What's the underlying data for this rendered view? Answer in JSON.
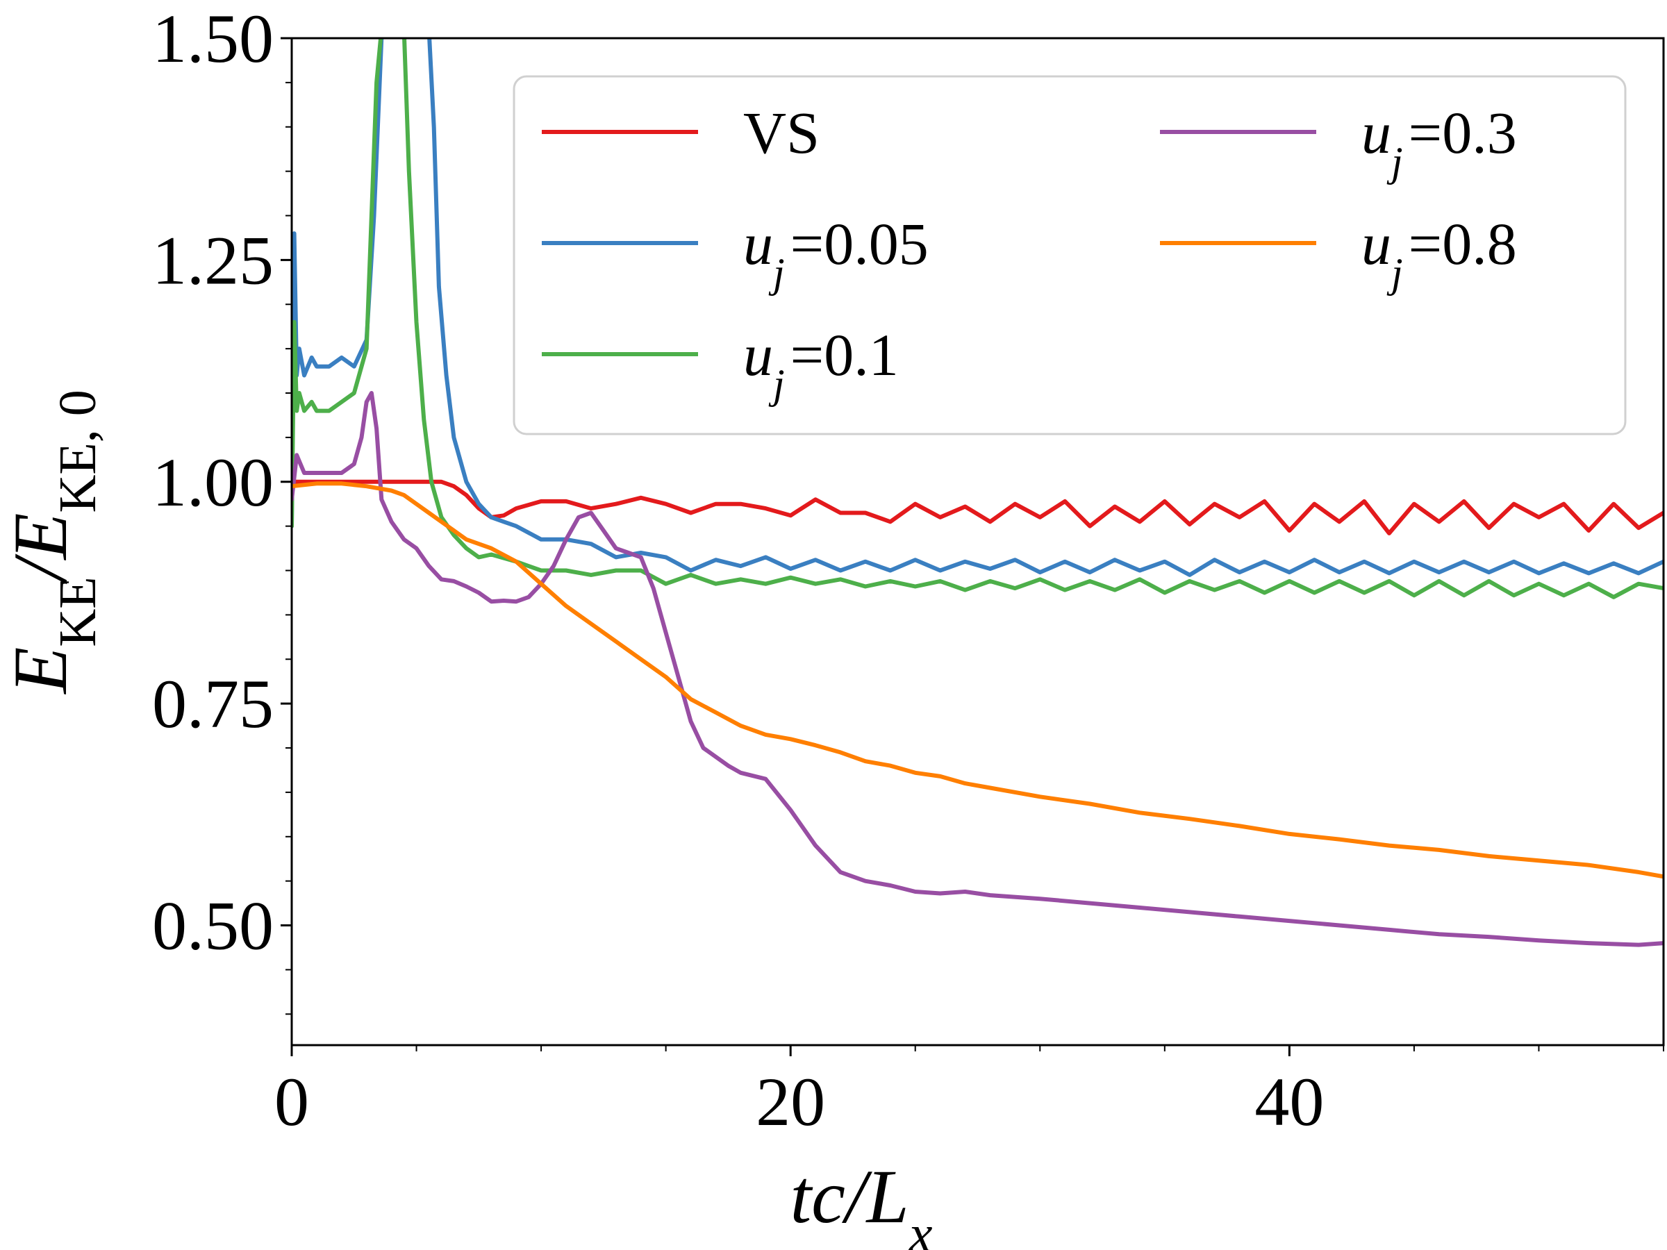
{
  "chart_data": {
    "type": "line",
    "xlabel": {
      "base": "tc/L",
      "sub": "x"
    },
    "ylabel": {
      "base1": "E",
      "sub1": "KE",
      "slash": "/",
      "base2": "E",
      "sub2": "KE, 0"
    },
    "xlim": [
      0,
      55
    ],
    "ylim": [
      0.365,
      1.5
    ],
    "xticks": [
      0,
      20,
      40
    ],
    "xtick_labels": [
      "0",
      "20",
      "40"
    ],
    "yticks": [
      0.5,
      0.75,
      1.0,
      1.25,
      1.5
    ],
    "ytick_labels": [
      "0.50",
      "0.75",
      "1.00",
      "1.25",
      "1.50"
    ],
    "grid": false,
    "legend_position": "top-right",
    "legend_columns": 2,
    "series": [
      {
        "name": "VS",
        "color": "#e31a1c",
        "x": [
          0,
          1,
          2,
          3,
          4,
          5,
          6,
          6.5,
          7,
          7.5,
          8,
          8.5,
          9,
          10,
          11,
          12,
          13,
          14,
          15,
          16,
          17,
          18,
          19,
          20,
          21,
          22,
          23,
          24,
          25,
          26,
          27,
          28,
          29,
          30,
          31,
          32,
          33,
          34,
          35,
          36,
          37,
          38,
          39,
          40,
          41,
          42,
          43,
          44,
          45,
          46,
          47,
          48,
          49,
          50,
          51,
          52,
          53,
          54,
          55
        ],
        "y": [
          1.0,
          1.0,
          1.0,
          1.0,
          1.0,
          1.0,
          1.0,
          0.995,
          0.985,
          0.97,
          0.96,
          0.962,
          0.97,
          0.978,
          0.978,
          0.97,
          0.975,
          0.982,
          0.975,
          0.965,
          0.975,
          0.975,
          0.97,
          0.962,
          0.98,
          0.965,
          0.965,
          0.955,
          0.975,
          0.96,
          0.972,
          0.955,
          0.975,
          0.96,
          0.978,
          0.95,
          0.972,
          0.955,
          0.978,
          0.952,
          0.975,
          0.96,
          0.978,
          0.945,
          0.975,
          0.955,
          0.978,
          0.942,
          0.975,
          0.955,
          0.978,
          0.948,
          0.975,
          0.96,
          0.975,
          0.945,
          0.975,
          0.948,
          0.965
        ]
      },
      {
        "name": "u_j = 0.05",
        "color": "#3a7fc1",
        "x": [
          0,
          0.1,
          0.2,
          0.3,
          0.5,
          0.8,
          1.0,
          1.5,
          2.0,
          2.5,
          3.0,
          3.3,
          3.6,
          3.8,
          4.0,
          5.5,
          5.7,
          5.9,
          6.2,
          6.5,
          7.0,
          7.5,
          8.0,
          8.5,
          9.0,
          10,
          11,
          12,
          13,
          14,
          15,
          16,
          17,
          18,
          19,
          20,
          21,
          22,
          23,
          24,
          25,
          26,
          27,
          28,
          29,
          30,
          31,
          32,
          33,
          34,
          35,
          36,
          37,
          38,
          39,
          40,
          41,
          42,
          43,
          44,
          45,
          46,
          47,
          48,
          49,
          50,
          51,
          52,
          53,
          54,
          55
        ],
        "y": [
          0.95,
          1.28,
          1.12,
          1.15,
          1.12,
          1.14,
          1.13,
          1.13,
          1.14,
          1.13,
          1.16,
          1.3,
          1.5,
          1.51,
          1.51,
          1.51,
          1.4,
          1.22,
          1.12,
          1.05,
          1.0,
          0.975,
          0.96,
          0.955,
          0.95,
          0.935,
          0.935,
          0.93,
          0.915,
          0.92,
          0.915,
          0.9,
          0.912,
          0.905,
          0.915,
          0.902,
          0.912,
          0.9,
          0.91,
          0.9,
          0.912,
          0.9,
          0.91,
          0.902,
          0.912,
          0.898,
          0.91,
          0.898,
          0.912,
          0.9,
          0.91,
          0.895,
          0.912,
          0.898,
          0.91,
          0.898,
          0.912,
          0.898,
          0.91,
          0.897,
          0.91,
          0.898,
          0.91,
          0.898,
          0.91,
          0.897,
          0.908,
          0.897,
          0.908,
          0.897,
          0.91
        ]
      },
      {
        "name": "u_j = 0.1",
        "color": "#4daf4a",
        "x": [
          0,
          0.1,
          0.2,
          0.3,
          0.5,
          0.8,
          1.0,
          1.5,
          2.0,
          2.5,
          3.0,
          3.2,
          3.4,
          3.6,
          4.5,
          4.7,
          5.0,
          5.3,
          5.6,
          6.0,
          6.5,
          7.0,
          7.5,
          8.0,
          9.0,
          10,
          11,
          12,
          13,
          14,
          15,
          16,
          17,
          18,
          19,
          20,
          21,
          22,
          23,
          24,
          25,
          26,
          27,
          28,
          29,
          30,
          31,
          32,
          33,
          34,
          35,
          36,
          37,
          38,
          39,
          40,
          41,
          42,
          43,
          44,
          45,
          46,
          47,
          48,
          49,
          50,
          51,
          52,
          53,
          54,
          55
        ],
        "y": [
          0.95,
          1.18,
          1.08,
          1.1,
          1.08,
          1.09,
          1.08,
          1.08,
          1.09,
          1.1,
          1.15,
          1.3,
          1.45,
          1.51,
          1.51,
          1.35,
          1.18,
          1.07,
          1.0,
          0.96,
          0.94,
          0.925,
          0.915,
          0.918,
          0.91,
          0.9,
          0.9,
          0.895,
          0.9,
          0.9,
          0.885,
          0.895,
          0.885,
          0.89,
          0.885,
          0.892,
          0.885,
          0.89,
          0.882,
          0.888,
          0.882,
          0.888,
          0.878,
          0.888,
          0.88,
          0.89,
          0.878,
          0.888,
          0.878,
          0.89,
          0.875,
          0.888,
          0.878,
          0.888,
          0.875,
          0.888,
          0.875,
          0.888,
          0.875,
          0.888,
          0.872,
          0.888,
          0.872,
          0.888,
          0.872,
          0.885,
          0.872,
          0.885,
          0.87,
          0.885,
          0.88
        ]
      },
      {
        "name": "u_j = 0.3",
        "color": "#984ea3",
        "x": [
          0,
          0.2,
          0.5,
          1.0,
          1.5,
          2.0,
          2.5,
          2.8,
          3.0,
          3.2,
          3.4,
          3.6,
          4.0,
          4.5,
          5.0,
          5.5,
          6.0,
          6.5,
          7.0,
          7.5,
          8.0,
          8.5,
          9.0,
          9.5,
          10.0,
          10.5,
          11.0,
          11.5,
          12.0,
          12.5,
          13.0,
          13.5,
          14.0,
          14.5,
          15.0,
          15.5,
          16.0,
          16.5,
          17.0,
          17.5,
          18.0,
          19.0,
          20.0,
          21.0,
          22.0,
          23.0,
          24.0,
          25.0,
          26.0,
          27.0,
          28.0,
          30.0,
          32.0,
          34.0,
          36.0,
          38.0,
          40.0,
          42.0,
          44.0,
          46.0,
          48.0,
          50.0,
          52.0,
          54.0,
          55.0
        ],
        "y": [
          0.98,
          1.03,
          1.01,
          1.01,
          1.01,
          1.01,
          1.02,
          1.05,
          1.09,
          1.1,
          1.06,
          0.98,
          0.955,
          0.935,
          0.925,
          0.905,
          0.89,
          0.888,
          0.882,
          0.875,
          0.865,
          0.866,
          0.865,
          0.87,
          0.885,
          0.905,
          0.935,
          0.96,
          0.965,
          0.945,
          0.925,
          0.92,
          0.915,
          0.88,
          0.83,
          0.78,
          0.73,
          0.7,
          0.69,
          0.68,
          0.672,
          0.665,
          0.63,
          0.59,
          0.56,
          0.55,
          0.545,
          0.538,
          0.536,
          0.538,
          0.534,
          0.53,
          0.525,
          0.52,
          0.515,
          0.51,
          0.505,
          0.5,
          0.495,
          0.49,
          0.487,
          0.483,
          0.48,
          0.478,
          0.48
        ]
      },
      {
        "name": "u_j = 0.8",
        "color": "#ff7f00",
        "x": [
          0,
          1,
          2,
          3,
          4,
          4.5,
          5,
          5.5,
          6,
          6.5,
          7,
          8,
          9,
          10,
          11,
          12,
          13,
          14,
          15,
          16,
          17,
          18,
          19,
          20,
          21,
          22,
          23,
          24,
          25,
          26,
          27,
          28,
          30,
          32,
          34,
          36,
          38,
          40,
          42,
          44,
          46,
          48,
          50,
          52,
          54,
          55
        ],
        "y": [
          0.995,
          0.998,
          0.998,
          0.995,
          0.99,
          0.985,
          0.975,
          0.965,
          0.955,
          0.945,
          0.935,
          0.925,
          0.91,
          0.885,
          0.86,
          0.84,
          0.82,
          0.8,
          0.78,
          0.755,
          0.74,
          0.725,
          0.715,
          0.71,
          0.703,
          0.695,
          0.685,
          0.68,
          0.672,
          0.668,
          0.66,
          0.655,
          0.645,
          0.637,
          0.627,
          0.62,
          0.612,
          0.603,
          0.597,
          0.59,
          0.585,
          0.578,
          0.573,
          0.568,
          0.56,
          0.555
        ]
      }
    ],
    "legend": {
      "rows": [
        {
          "col": 0,
          "row": 0,
          "label": "VS",
          "kind": "plain",
          "color": "#e31a1c"
        },
        {
          "col": 0,
          "row": 1,
          "label": "0.05",
          "kind": "uj",
          "color": "#3a7fc1"
        },
        {
          "col": 0,
          "row": 2,
          "label": "0.1",
          "kind": "uj",
          "color": "#4daf4a"
        },
        {
          "col": 1,
          "row": 0,
          "label": "0.3",
          "kind": "uj",
          "color": "#984ea3"
        },
        {
          "col": 1,
          "row": 1,
          "label": "0.8",
          "kind": "uj",
          "color": "#ff7f00"
        }
      ],
      "uj_base": "u",
      "uj_sub": "j",
      "uj_eq": "="
    }
  }
}
